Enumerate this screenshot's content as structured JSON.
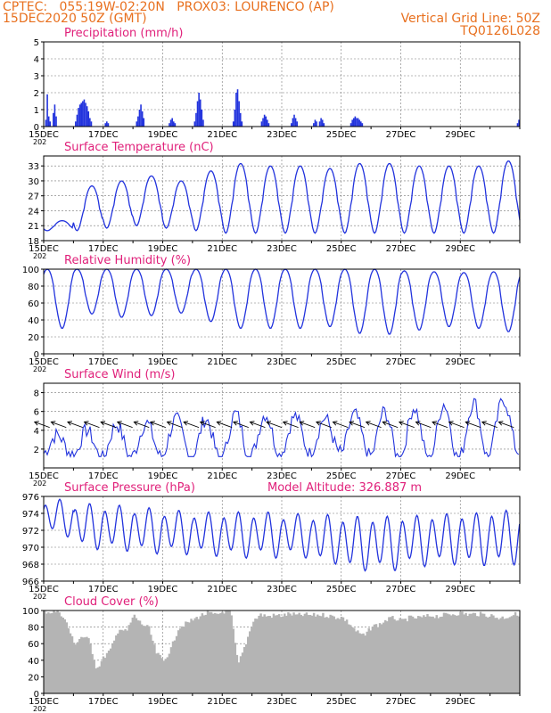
{
  "header": {
    "line1_left": "CPTEC:   055:19W-02:20N   PROX03: LOURENCO (AP)",
    "line2_left": "15DEC2020 50Z (GMT)",
    "line2_right": "Vertical Grid Line: 50Z",
    "line3_right": "TQ0126L028"
  },
  "colors": {
    "header": "#e8701f",
    "title": "#e0207a",
    "series": "#2233dd",
    "precip": "#2233dd",
    "cloud": "#b4b4b4"
  },
  "x_axis": {
    "days": 16,
    "tick_labels": [
      "15DEC",
      "17DEC",
      "19DEC",
      "21DEC",
      "23DEC",
      "25DEC",
      "27DEC",
      "29DEC"
    ],
    "year_label": "202"
  },
  "chart_data": [
    {
      "type": "bar",
      "title": "Precipitation (mm/h)",
      "ylim": [
        0,
        5
      ],
      "yticks": [
        0,
        1,
        2,
        3,
        4,
        5
      ],
      "grid": true,
      "bursts": [
        {
          "day": 0.05,
          "values": [
            0.4,
            1.9,
            0.6,
            0.3
          ]
        },
        {
          "day": 0.3,
          "values": [
            0.8,
            1.3,
            0.6
          ]
        },
        {
          "day": 1.05,
          "values": [
            0.3,
            0.7,
            1.1,
            1.3,
            1.4,
            1.5,
            1.6,
            1.4,
            1.2,
            0.9,
            0.5,
            0.3
          ]
        },
        {
          "day": 2.05,
          "values": [
            0.2,
            0.3,
            0.2
          ]
        },
        {
          "day": 3.1,
          "values": [
            0.3,
            0.6,
            1.0,
            1.3,
            0.9,
            0.5
          ]
        },
        {
          "day": 4.2,
          "values": [
            0.2,
            0.4,
            0.5,
            0.3,
            0.2
          ]
        },
        {
          "day": 5.05,
          "values": [
            0.3,
            0.8,
            1.5,
            2.0,
            1.6,
            1.0,
            0.4
          ]
        },
        {
          "day": 6.35,
          "values": [
            0.3,
            1.0,
            2.0,
            2.2,
            1.5,
            0.8,
            0.3
          ]
        },
        {
          "day": 7.3,
          "values": [
            0.3,
            0.5,
            0.7,
            0.6,
            0.4,
            0.2
          ]
        },
        {
          "day": 8.3,
          "values": [
            0.2,
            0.5,
            0.7,
            0.5,
            0.3
          ]
        },
        {
          "day": 9.05,
          "values": [
            0.2,
            0.4,
            0.3
          ]
        },
        {
          "day": 9.25,
          "values": [
            0.3,
            0.5,
            0.4,
            0.2
          ]
        },
        {
          "day": 10.3,
          "values": [
            0.2,
            0.4,
            0.5,
            0.6,
            0.5,
            0.5,
            0.4,
            0.3,
            0.2
          ]
        },
        {
          "day": 15.9,
          "values": [
            0.2,
            0.4
          ]
        }
      ]
    },
    {
      "type": "line",
      "title": "Surface Temperature (nC)",
      "ylim": [
        18,
        35
      ],
      "yticks": [
        18,
        21,
        24,
        27,
        30,
        33
      ],
      "grid": true,
      "pattern": {
        "min": [
          20.0,
          20.0,
          20.5,
          21.0,
          20.5,
          20.0,
          19.5,
          19.5,
          19.5,
          19.5,
          19.5,
          19.5,
          19.5,
          19.5,
          19.5,
          19.5,
          20.0
        ],
        "max": [
          22.0,
          29.0,
          30.0,
          31.0,
          30.0,
          32.0,
          33.5,
          33.0,
          33.0,
          32.5,
          33.5,
          33.5,
          33.0,
          33.0,
          33.0,
          34.0,
          33.0
        ]
      }
    },
    {
      "type": "line",
      "title": "Relative Humidity (%)",
      "ylim": [
        0,
        100
      ],
      "yticks": [
        0,
        20,
        40,
        60,
        80,
        100
      ],
      "grid": true,
      "pattern": {
        "max": [
          100,
          100,
          100,
          100,
          100,
          100,
          100,
          100,
          100,
          100,
          100,
          100,
          98,
          97,
          96,
          97,
          96
        ],
        "min": [
          30,
          47,
          43,
          45,
          48,
          38,
          30,
          30,
          30,
          32,
          24,
          23,
          28,
          32,
          30,
          26,
          28
        ]
      }
    },
    {
      "type": "line",
      "title": "Surface Wind (m/s)",
      "ylim": [
        0,
        9
      ],
      "yticks": [
        2,
        4,
        6,
        8
      ],
      "grid": true,
      "pattern": {
        "base": [
          2.5,
          2.5,
          2.8,
          3.0,
          3.2,
          3.0,
          3.3,
          3.5,
          3.5,
          3.5,
          3.5,
          3.5,
          3.6,
          3.8,
          4.0,
          4.5,
          4.5
        ],
        "amp": [
          1.0,
          1.5,
          1.8,
          1.8,
          2.0,
          2.2,
          2.5,
          2.2,
          2.0,
          1.8,
          2.2,
          2.5,
          2.8,
          3.0,
          3.0,
          2.8,
          2.5
        ]
      },
      "arrows": {
        "y": 4.3,
        "count": 29,
        "length": 18,
        "angle_deg": 200
      }
    },
    {
      "type": "line",
      "title": "Surface Pressure (hPa)",
      "annotation": "Model Altitude: 326.887 m",
      "ylim": [
        966,
        976
      ],
      "yticks": [
        966,
        968,
        970,
        972,
        974,
        976
      ],
      "grid": true,
      "pattern": {
        "mean": [
          973.5,
          972.5,
          972.3,
          972.0,
          971.8,
          971.6,
          971.5,
          971.5,
          971.4,
          971.0,
          970.5,
          970.5,
          970.8,
          971.0,
          971.0,
          971.2,
          971.5
        ],
        "semi_amp": [
          1.8,
          2.3,
          2.3,
          2.3,
          2.2,
          2.2,
          2.3,
          2.3,
          2.2,
          2.5,
          2.8,
          2.8,
          2.6,
          2.6,
          2.7,
          2.8,
          2.8
        ]
      }
    },
    {
      "type": "area",
      "title": "Cloud Cover (%)",
      "ylim": [
        0,
        100
      ],
      "yticks": [
        0,
        20,
        40,
        60,
        80,
        100
      ],
      "grid": true,
      "profile": [
        100,
        99,
        100,
        85,
        60,
        70,
        65,
        30,
        45,
        55,
        80,
        75,
        95,
        85,
        80,
        50,
        40,
        55,
        80,
        85,
        90,
        95,
        98,
        95,
        100,
        100,
        35,
        60,
        88,
        96,
        94,
        95,
        95,
        97,
        95,
        96,
        95,
        96,
        95,
        93,
        93,
        85,
        75,
        70,
        82,
        84,
        90,
        92,
        88,
        92,
        92,
        93,
        95,
        94,
        96,
        97,
        98,
        96,
        97,
        96,
        95,
        92,
        93,
        96,
        97
      ]
    }
  ]
}
